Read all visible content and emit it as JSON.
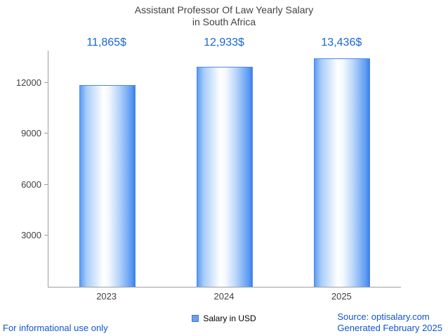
{
  "title": {
    "line1": "Assistant Professor Of Law Yearly Salary",
    "line2": "in South Africa"
  },
  "chart_data": {
    "type": "bar",
    "title": "Assistant Professor Of Law Yearly Salary in South Africa",
    "categories": [
      "2023",
      "2024",
      "2025"
    ],
    "values": [
      11865,
      12933,
      13436
    ],
    "value_labels": [
      "11,865$",
      "12,933$",
      "13,436$"
    ],
    "series_name": "Salary in USD",
    "xlabel": "",
    "ylabel": "",
    "ylim": [
      0,
      13900
    ],
    "yticks": [
      3000,
      6000,
      9000,
      12000
    ],
    "grid": false,
    "legend_position": "bottom"
  },
  "legend": {
    "label": "Salary in USD"
  },
  "footer": {
    "disclaimer": "For informational use only",
    "source": "Source: optisalary.com",
    "generated": "Generated February 2025"
  },
  "colors": {
    "value_label_text": "#1967d2",
    "link_text": "#1155cc",
    "title_text": "#424242",
    "axis": "#9e9e9e",
    "bar_edge_blue": "#4d88e8",
    "bar_center": "#ffffff",
    "legend_swatch_fill": "#6d9eeb",
    "legend_swatch_border": "#3c78d8"
  }
}
